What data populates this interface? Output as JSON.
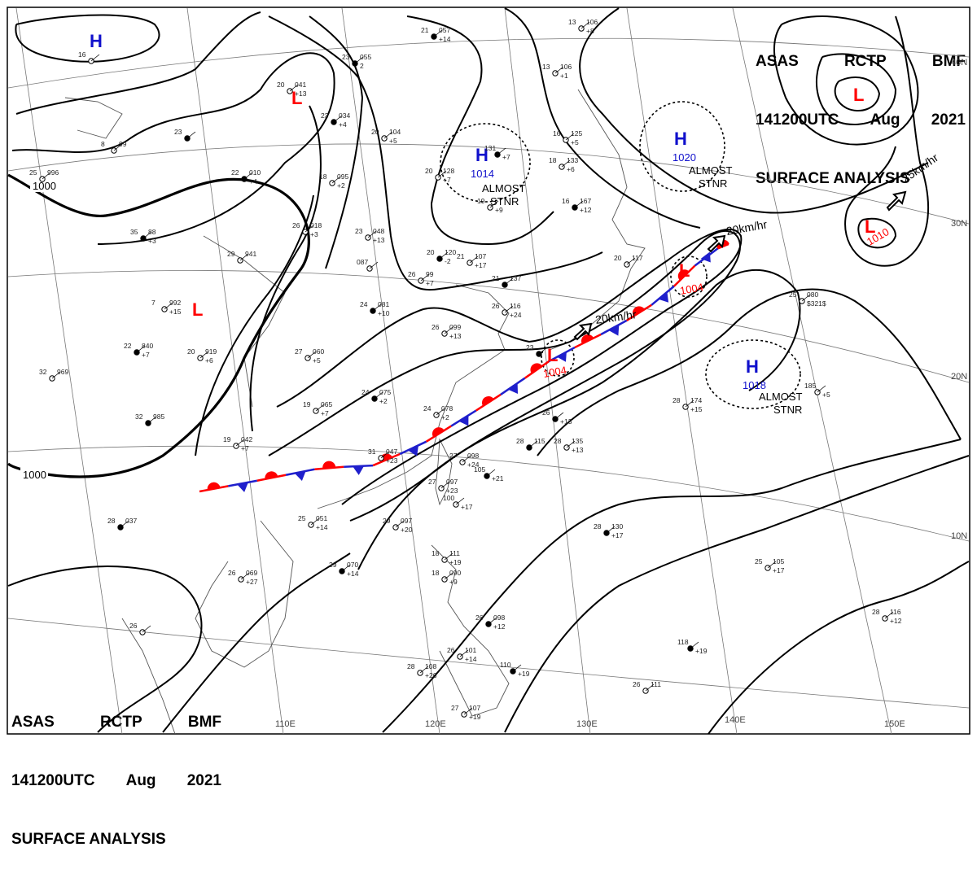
{
  "header": {
    "agency": [
      "ASAS",
      "RCTP",
      "BMF"
    ],
    "time": [
      "141200UTC",
      "Aug",
      "2021"
    ],
    "product": "SURFACE ANALYSIS"
  },
  "lon_labels": [
    "110E",
    "120E",
    "130E",
    "140E",
    "150E"
  ],
  "lat_labels": [
    "40N",
    "30N",
    "20N",
    "10N"
  ],
  "isobar_labels": [
    "1000",
    "1000"
  ],
  "colors": {
    "low": "#ff0000",
    "high": "#1010cc",
    "warm_front": "#ff0000",
    "cold_front": "#1f1fcc",
    "text": "#000000"
  },
  "highs": [
    {
      "symbol": "H",
      "pressure": ""
    },
    {
      "symbol": "H",
      "pressure": "1014",
      "note": [
        "ALMOST",
        "STNR"
      ]
    },
    {
      "symbol": "H",
      "pressure": "1020",
      "note": [
        "ALMOST",
        "STNR"
      ]
    },
    {
      "symbol": "H",
      "pressure": "1018",
      "note": [
        "ALMOST",
        "STNR"
      ]
    }
  ],
  "lows": [
    {
      "symbol": "L",
      "pressure": ""
    },
    {
      "symbol": "L",
      "pressure": ""
    },
    {
      "symbol": "L",
      "pressure": ""
    },
    {
      "symbol": "L",
      "pressure": "1010"
    },
    {
      "symbol": "L",
      "pressure": "1004"
    },
    {
      "symbol": "L",
      "pressure": "1004"
    }
  ],
  "motion": [
    "25km/hr",
    "20km/hr",
    "20km/hr"
  ],
  "stations": [
    [
      "21",
      "057",
      "+14"
    ],
    [
      "13",
      "106",
      "+8"
    ],
    [
      "16",
      "",
      ""
    ],
    [
      "23",
      "055",
      "2"
    ],
    [
      "20",
      "041",
      "+13"
    ],
    [
      "13",
      "106",
      "+1"
    ],
    [
      "23",
      "034",
      "+4"
    ],
    [
      "20",
      "104",
      "+5"
    ],
    [
      "16",
      "125",
      "+5"
    ],
    [
      "23",
      "",
      ""
    ],
    [
      "8",
      "99",
      ""
    ],
    [
      "25",
      "996",
      ""
    ],
    [
      "22",
      "010",
      "+4"
    ],
    [
      "18",
      "095",
      "+2"
    ],
    [
      "20",
      "128",
      "+7"
    ],
    [
      "131",
      "",
      "+7"
    ],
    [
      "18",
      "133",
      "+6"
    ],
    [
      "19",
      "",
      "+9"
    ],
    [
      "16",
      "167",
      "+12"
    ],
    [
      "26",
      "018",
      "+3"
    ],
    [
      "23",
      "048",
      "+13"
    ],
    [
      "35",
      "88",
      "+3"
    ],
    [
      "29",
      "941",
      ""
    ],
    [
      "087",
      "",
      ""
    ],
    [
      "20",
      "120",
      "-2"
    ],
    [
      "21",
      "107",
      "+17"
    ],
    [
      "26",
      "99",
      "+7"
    ],
    [
      "21",
      "137",
      ""
    ],
    [
      "20",
      "117",
      ""
    ],
    [
      "7",
      "992",
      "+15"
    ],
    [
      "24",
      "081",
      "+10"
    ],
    [
      "26",
      "116",
      "+24"
    ],
    [
      "26",
      "099",
      "+13"
    ],
    [
      "22",
      "840",
      "+7"
    ],
    [
      "20",
      "919",
      "+6"
    ],
    [
      "27",
      "060",
      "+5"
    ],
    [
      "23",
      "",
      ""
    ],
    [
      "25",
      "080",
      "$321$"
    ],
    [
      "32",
      "969",
      ""
    ],
    [
      "24",
      "075",
      "+2"
    ],
    [
      "19",
      "065",
      "+7"
    ],
    [
      "24",
      "078",
      "+2"
    ],
    [
      "26",
      "",
      "+13"
    ],
    [
      "28",
      "174",
      "+15"
    ],
    [
      "185",
      "",
      "+5"
    ],
    [
      "32",
      "985",
      ""
    ],
    [
      "19",
      "042",
      "+7"
    ],
    [
      "31",
      "047",
      "+23"
    ],
    [
      "28",
      "115",
      ""
    ],
    [
      "28",
      "135",
      "+13"
    ],
    [
      "27",
      "098",
      "+24"
    ],
    [
      "105",
      "",
      "+21"
    ],
    [
      "27",
      "097",
      "+23"
    ],
    [
      "100",
      "",
      "+17"
    ],
    [
      "28",
      "037",
      ""
    ],
    [
      "25",
      "051",
      "+14"
    ],
    [
      "29",
      "097",
      "+20"
    ],
    [
      "28",
      "130",
      "+17"
    ],
    [
      "18",
      "111",
      "+19"
    ],
    [
      "26",
      "069",
      "+27"
    ],
    [
      "29",
      "070",
      "+14"
    ],
    [
      "18",
      "090",
      "+9"
    ],
    [
      "25",
      "105",
      "+17"
    ],
    [
      "26",
      "098",
      "+12"
    ],
    [
      "28",
      "116",
      "+12"
    ],
    [
      "26",
      "101",
      "+14"
    ],
    [
      "118",
      "",
      "+19"
    ],
    [
      "26",
      "",
      ""
    ],
    [
      "28",
      "108",
      "+26"
    ],
    [
      "110",
      "",
      "+19"
    ],
    [
      "26",
      "111",
      ""
    ],
    [
      "27",
      "107",
      "+19"
    ]
  ]
}
